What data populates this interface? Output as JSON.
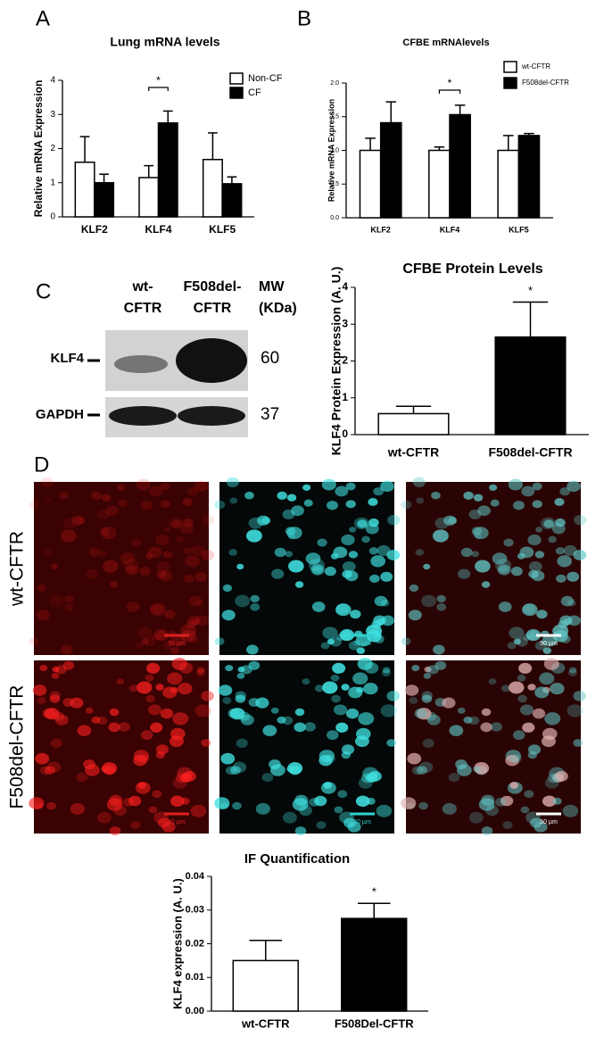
{
  "panels": [
    "A",
    "B",
    "C",
    "D"
  ],
  "chart_data": [
    {
      "type": "bar",
      "title": "Lung mRNA levels",
      "y_label": "Relative mRNA Expression",
      "categories": [
        "KLF2",
        "KLF4",
        "KLF5"
      ],
      "series": [
        {
          "name": "Non-CF",
          "color": "#ffffff",
          "values": [
            1.6,
            1.15,
            1.68
          ],
          "errors": [
            0.75,
            0.35,
            0.78
          ]
        },
        {
          "name": "CF",
          "color": "#000000",
          "values": [
            1.0,
            2.75,
            0.97
          ],
          "errors": [
            0.25,
            0.35,
            0.2
          ]
        }
      ],
      "ylim": [
        0,
        4
      ],
      "yticks": [
        0,
        1,
        2,
        3,
        4
      ],
      "annotations": [
        {
          "text": "*",
          "category": "KLF4"
        }
      ]
    },
    {
      "type": "bar",
      "title": "CFBE mRNAlevels",
      "y_label": "Relative mRNA Expression",
      "categories": [
        "KLF2",
        "KLF4",
        "KLF5"
      ],
      "series": [
        {
          "name": "wt-CFTR",
          "color": "#ffffff",
          "values": [
            1.0,
            1.0,
            1.0
          ],
          "errors": [
            0.18,
            0.05,
            0.22
          ]
        },
        {
          "name": "F508del-CFTR",
          "color": "#000000",
          "values": [
            1.41,
            1.53,
            1.22
          ],
          "errors": [
            0.31,
            0.14,
            0.03
          ]
        }
      ],
      "ylim": [
        0,
        2
      ],
      "yticks": [
        {
          "value": 0,
          "label": "0.0"
        },
        0.5,
        {
          "value": 1,
          "label": "1.0"
        },
        1.5,
        {
          "value": 2,
          "label": "2.0"
        }
      ],
      "annotations": [
        {
          "text": "*",
          "category": "KLF4"
        }
      ]
    },
    {
      "type": "bar",
      "title": "CFBE Protein Levels",
      "y_label": "KLF4 Protein Expression (A. U.)",
      "categories": [
        "wt-CFTR",
        "F508del-CFTR"
      ],
      "series": [
        {
          "colors": [
            "#ffffff",
            "#000000"
          ],
          "values": [
            0.57,
            2.65
          ],
          "errors": [
            0.2,
            0.95
          ]
        }
      ],
      "ylim": [
        0,
        4
      ],
      "yticks": [
        0,
        1,
        2,
        3,
        4
      ],
      "annotations": [
        {
          "text": "*",
          "category": "F508del-CFTR"
        }
      ]
    },
    {
      "type": "bar",
      "title": "IF  Quantification",
      "y_label": "KLF4 expression (A. U.)",
      "categories": [
        "wt-CFTR",
        "F508Del-CFTR"
      ],
      "series": [
        {
          "colors": [
            "#ffffff",
            "#000000"
          ],
          "values": [
            0.015,
            0.0275
          ],
          "errors": [
            0.006,
            0.0045
          ]
        }
      ],
      "ylim": [
        0,
        0.04
      ],
      "yticks": [
        {
          "value": 0,
          "label": "0.00"
        },
        0.01,
        0.02,
        0.03,
        0.04
      ],
      "annotations": [
        {
          "text": "*",
          "category": "F508Del-CFTR"
        }
      ]
    }
  ],
  "blot": {
    "lanes": [
      [
        "wt-",
        "CFTR"
      ],
      [
        "F508del-",
        "CFTR"
      ]
    ],
    "mw_header": [
      "MW",
      "(KDa)"
    ],
    "bands": [
      {
        "name": "KLF4",
        "mw": "60"
      },
      {
        "name": "GAPDH",
        "mw": "37"
      }
    ]
  },
  "micrographs": {
    "rows": [
      "wt-CFTR",
      "F508del-CFTR"
    ],
    "scale_bar": "50 µm"
  }
}
